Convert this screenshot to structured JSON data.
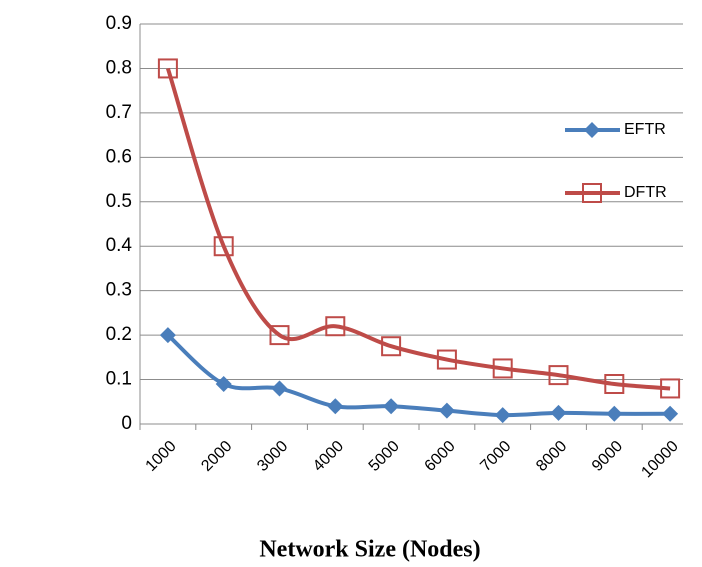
{
  "chart_data": {
    "type": "line",
    "x_label": "Network Size (Nodes)",
    "categories": [
      "1000",
      "2000",
      "3000",
      "4000",
      "5000",
      "6000",
      "7000",
      "8000",
      "9000",
      "10000"
    ],
    "series": [
      {
        "name": "EFTR",
        "color": "#4a7ebb",
        "marker": "diamond",
        "values": [
          0.2,
          0.09,
          0.08,
          0.04,
          0.04,
          0.03,
          0.02,
          0.025,
          0.023,
          0.023
        ]
      },
      {
        "name": "DFTR",
        "color": "#be4b48",
        "marker": "square",
        "values": [
          0.8,
          0.4,
          0.2,
          0.22,
          0.175,
          0.145,
          0.125,
          0.11,
          0.09,
          0.08
        ]
      }
    ],
    "ylim": [
      0,
      0.9
    ],
    "yticks": [
      0,
      0.1,
      0.2,
      0.3,
      0.4,
      0.5,
      0.6,
      0.7,
      0.8,
      0.9
    ],
    "grid": true,
    "legend": "right"
  }
}
